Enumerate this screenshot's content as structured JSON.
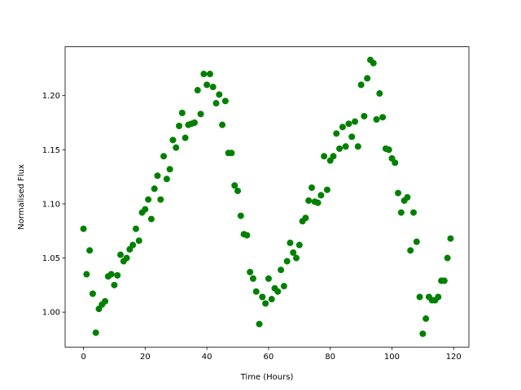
{
  "chart_data": {
    "type": "scatter",
    "x_label": "Time (Hours)",
    "y_label": "Normalised Flux",
    "x": [
      0,
      1,
      2,
      3,
      4,
      5,
      6,
      7,
      8,
      9,
      10,
      11,
      12,
      13,
      14,
      15,
      16,
      17,
      18,
      19,
      20,
      21,
      22,
      23,
      24,
      25,
      26,
      27,
      28,
      29,
      30,
      31,
      32,
      33,
      34,
      35,
      36,
      37,
      38,
      39,
      40,
      41,
      42,
      43,
      44,
      45,
      46,
      47,
      48,
      49,
      50,
      51,
      52,
      53,
      54,
      55,
      56,
      57,
      58,
      59,
      60,
      61,
      62,
      63,
      64,
      65,
      66,
      67,
      68,
      69,
      70,
      71,
      72,
      73,
      74,
      75,
      76,
      77,
      78,
      79,
      80,
      81,
      82,
      83,
      84,
      85,
      86,
      87,
      88,
      89,
      90,
      91,
      92,
      93,
      94,
      95,
      96,
      97,
      98,
      99,
      100,
      101,
      102,
      103,
      104,
      105,
      106,
      107,
      108,
      109,
      110,
      111,
      112,
      113,
      114,
      115,
      116,
      117,
      118,
      119
    ],
    "values": [
      1.077,
      1.035,
      1.057,
      1.017,
      0.981,
      1.003,
      1.007,
      1.01,
      1.033,
      1.035,
      1.025,
      1.034,
      1.053,
      1.047,
      1.05,
      1.058,
      1.062,
      1.077,
      1.066,
      1.092,
      1.095,
      1.104,
      1.086,
      1.114,
      1.126,
      1.104,
      1.144,
      1.123,
      1.132,
      1.159,
      1.152,
      1.172,
      1.184,
      1.161,
      1.173,
      1.174,
      1.175,
      1.205,
      1.183,
      1.22,
      1.21,
      1.22,
      1.208,
      1.193,
      1.201,
      1.173,
      1.195,
      1.147,
      1.147,
      1.117,
      1.112,
      1.089,
      1.072,
      1.071,
      1.037,
      1.031,
      1.019,
      0.989,
      1.014,
      1.008,
      1.031,
      1.012,
      1.022,
      1.019,
      1.039,
      1.024,
      1.047,
      1.064,
      1.055,
      1.05,
      1.062,
      1.084,
      1.087,
      1.103,
      1.115,
      1.102,
      1.101,
      1.108,
      1.144,
      1.113,
      1.14,
      1.144,
      1.165,
      1.151,
      1.171,
      1.153,
      1.174,
      1.162,
      1.176,
      1.153,
      1.21,
      1.181,
      1.216,
      1.233,
      1.23,
      1.178,
      1.202,
      1.18,
      1.151,
      1.15,
      1.142,
      1.138,
      1.11,
      1.092,
      1.103,
      1.106,
      1.057,
      1.092,
      1.065,
      1.014,
      0.98,
      0.994,
      1.014,
      1.011,
      1.011,
      1.014,
      1.029,
      1.029,
      1.05,
      1.068
    ],
    "color": "#008000",
    "xlim": [
      -5.95,
      124.95
    ],
    "xticks": [
      0,
      20,
      40,
      60,
      80,
      100,
      120
    ],
    "ylim": [
      0.9677,
      1.2451
    ],
    "yticks": [
      {
        "value": 1.0,
        "label": "1.00"
      },
      {
        "value": 1.05,
        "label": "1.05"
      },
      {
        "value": 1.1,
        "label": "1.10"
      },
      {
        "value": 1.15,
        "label": "1.15"
      },
      {
        "value": 1.2,
        "label": "1.20"
      }
    ]
  }
}
